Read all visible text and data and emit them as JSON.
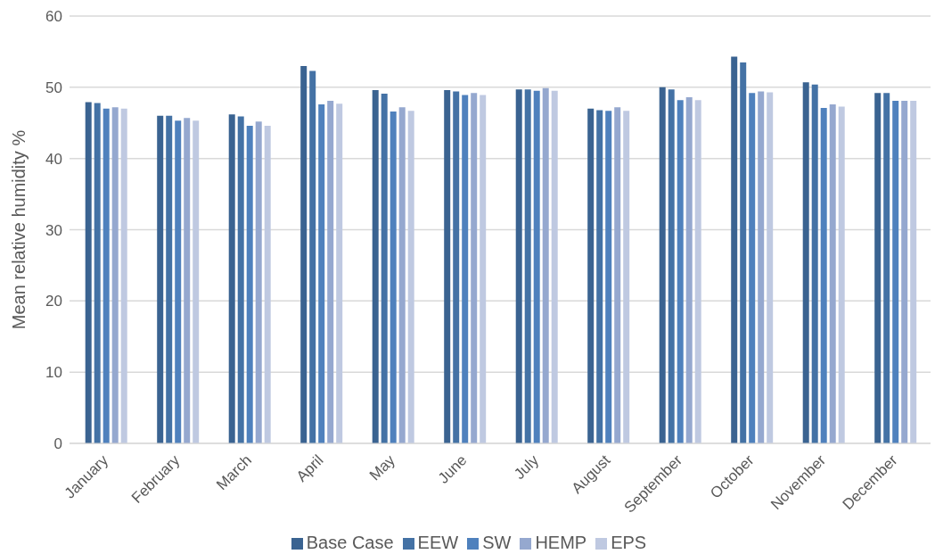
{
  "chart_data": {
    "type": "bar",
    "ylabel": "Mean relative humidity %",
    "categories": [
      "January",
      "February",
      "March",
      "April",
      "May",
      "June",
      "July",
      "August",
      "September",
      "October",
      "November",
      "December"
    ],
    "series": [
      {
        "name": "Base Case",
        "color": "#3a6391",
        "values": [
          47.9,
          46.0,
          46.2,
          53.0,
          49.6,
          49.6,
          49.7,
          47.0,
          50.0,
          54.3,
          50.7,
          49.2
        ]
      },
      {
        "name": "EEW",
        "color": "#4472a5",
        "values": [
          47.8,
          46.0,
          45.9,
          52.3,
          49.1,
          49.4,
          49.7,
          46.8,
          49.7,
          53.5,
          50.4,
          49.2
        ]
      },
      {
        "name": "SW",
        "color": "#4f81bd",
        "values": [
          47.0,
          45.3,
          44.6,
          47.6,
          46.6,
          48.9,
          49.5,
          46.7,
          48.2,
          49.2,
          47.1,
          48.1
        ]
      },
      {
        "name": "HEMP",
        "color": "#95a8cf",
        "values": [
          47.2,
          45.7,
          45.2,
          48.1,
          47.2,
          49.2,
          49.9,
          47.2,
          48.6,
          49.4,
          47.6,
          48.1
        ]
      },
      {
        "name": "EPS",
        "color": "#bfc9e1",
        "values": [
          47.0,
          45.3,
          44.6,
          47.7,
          46.7,
          48.9,
          49.5,
          46.7,
          48.2,
          49.3,
          47.3,
          48.1
        ]
      }
    ],
    "ylim": [
      0,
      60
    ],
    "yticks": [
      0,
      10,
      20,
      30,
      40,
      50,
      60
    ],
    "grid": "y",
    "legend": "bottom"
  }
}
